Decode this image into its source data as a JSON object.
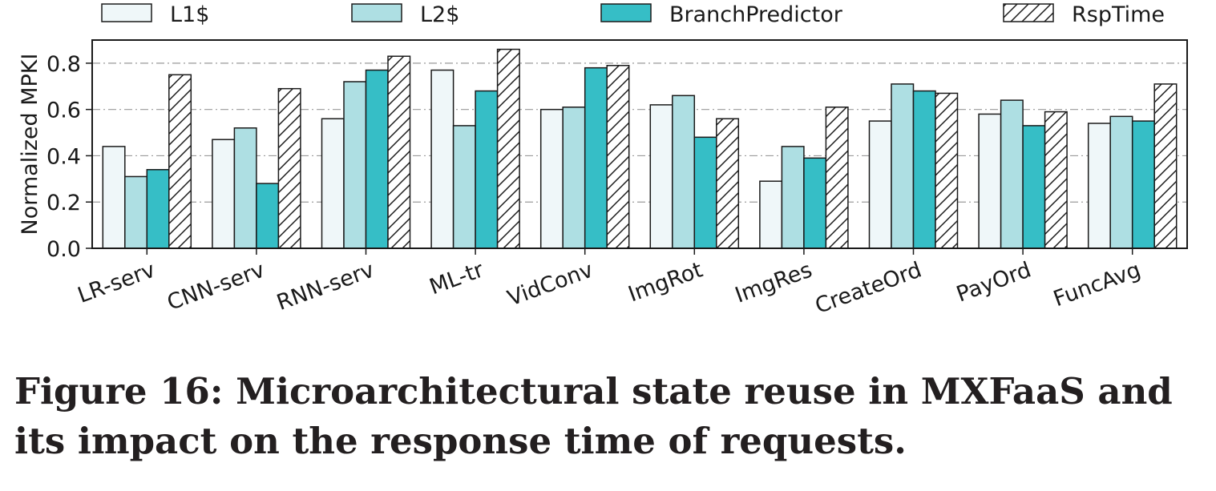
{
  "chart_data": {
    "type": "bar",
    "title": "",
    "xlabel": "",
    "ylabel": "Normalized MPKI",
    "ylim": [
      0,
      0.9
    ],
    "yticks": [
      "0.0",
      "0.2",
      "0.4",
      "0.6",
      "0.8"
    ],
    "grid": "horizontal dash-dot",
    "legend_position": "top, outside plot",
    "categories": [
      "LR-serv",
      "CNN-serv",
      "RNN-serv",
      "ML-tr",
      "VidConv",
      "ImgRot",
      "ImgRes",
      "CreateOrd",
      "PayOrd",
      "FuncAvg"
    ],
    "series": [
      {
        "name": "L1$",
        "color": "#eff7f9",
        "pattern": "solid",
        "values": [
          0.44,
          0.47,
          0.56,
          0.77,
          0.6,
          0.62,
          0.29,
          0.55,
          0.58,
          0.54
        ]
      },
      {
        "name": "L2$",
        "color": "#aedfe3",
        "pattern": "solid",
        "values": [
          0.31,
          0.52,
          0.72,
          0.53,
          0.61,
          0.66,
          0.44,
          0.71,
          0.64,
          0.57
        ]
      },
      {
        "name": "BranchPredictor",
        "color": "#36bec6",
        "pattern": "solid",
        "values": [
          0.34,
          0.28,
          0.77,
          0.68,
          0.78,
          0.48,
          0.39,
          0.68,
          0.53,
          0.55
        ]
      },
      {
        "name": "RspTime",
        "color": "#ffffff",
        "pattern": "hatch",
        "values": [
          0.75,
          0.69,
          0.83,
          0.86,
          0.79,
          0.56,
          0.61,
          0.67,
          0.59,
          0.71
        ]
      }
    ]
  },
  "caption": "Figure 16: Microarchitectural state reuse in MXFaaS and its impact on the response time of requests."
}
